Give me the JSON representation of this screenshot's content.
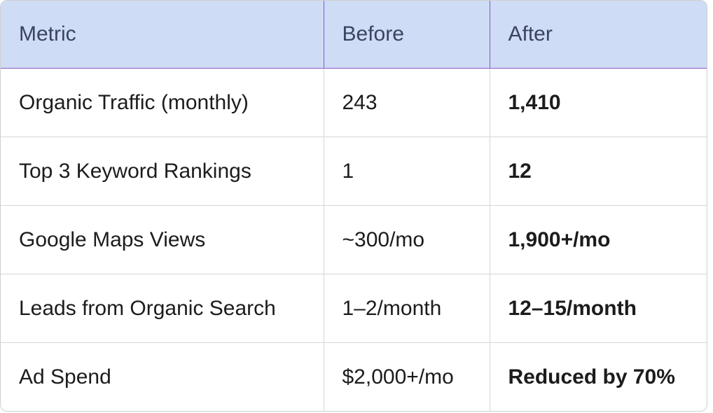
{
  "table": {
    "header": [
      "Metric",
      "Before",
      "After"
    ],
    "rows": [
      [
        "Organic Traffic (monthly)",
        "243",
        "1,410"
      ],
      [
        "Top 3 Keyword Rankings",
        "1",
        "12"
      ],
      [
        "Google Maps Views",
        "~300/mo",
        "1,900+/mo"
      ],
      [
        "Leads from Organic Search",
        "1–2/month",
        "12–15/month"
      ],
      [
        "Ad Spend",
        "$2,000+/mo",
        "Reduced by 70%"
      ]
    ]
  }
}
